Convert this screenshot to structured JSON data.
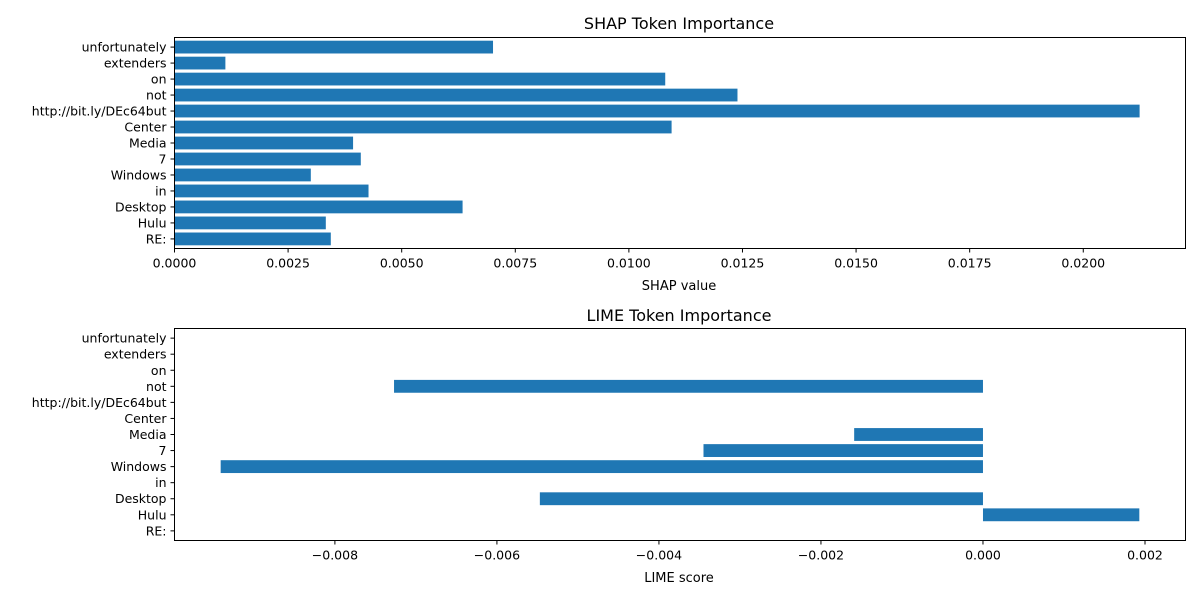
{
  "chart_data": [
    {
      "type": "bar",
      "orientation": "horizontal",
      "title": "SHAP Token Importance",
      "xlabel": "SHAP value",
      "ylabel": "",
      "categories": [
        "RE:",
        "Hulu",
        "Desktop",
        "in",
        "Windows",
        "7",
        "Media",
        "Center",
        "http://bit.ly/DEc64but",
        "not",
        "on",
        "extenders",
        "unfortunately"
      ],
      "values": [
        0.00344,
        0.00333,
        0.00634,
        0.00427,
        0.003,
        0.0041,
        0.00393,
        0.01094,
        0.02124,
        0.01239,
        0.0108,
        0.00112,
        0.00701
      ],
      "xlim": [
        0,
        0.02225
      ],
      "xticks": [
        0,
        0.0025,
        0.005,
        0.0075,
        0.01,
        0.0125,
        0.015,
        0.0175,
        0.02
      ],
      "xtick_labels": [
        "0.0000",
        "0.0025",
        "0.0050",
        "0.0075",
        "0.0100",
        "0.0125",
        "0.0150",
        "0.0175",
        "0.0200"
      ],
      "grid": false,
      "color": "#1f77b4"
    },
    {
      "type": "bar",
      "orientation": "horizontal",
      "title": "LIME Token Importance",
      "xlabel": "LIME score",
      "ylabel": "",
      "categories": [
        "RE:",
        "Hulu",
        "Desktop",
        "in",
        "Windows",
        "7",
        "Media",
        "Center",
        "http://bit.ly/DEc64but",
        "not",
        "on",
        "extenders",
        "unfortunately"
      ],
      "values": [
        0,
        0.00193,
        -0.00547,
        0,
        -0.00941,
        -0.00345,
        -0.00159,
        0,
        0,
        -0.00727,
        0,
        0,
        0
      ],
      "xlim": [
        -0.00998,
        0.0025
      ],
      "xticks": [
        -0.008,
        -0.006,
        -0.004,
        -0.002,
        0,
        0.002
      ],
      "xtick_labels": [
        "−0.008",
        "−0.006",
        "−0.004",
        "−0.002",
        "0.000",
        "0.002"
      ],
      "grid": false,
      "color": "#1f77b4"
    }
  ]
}
